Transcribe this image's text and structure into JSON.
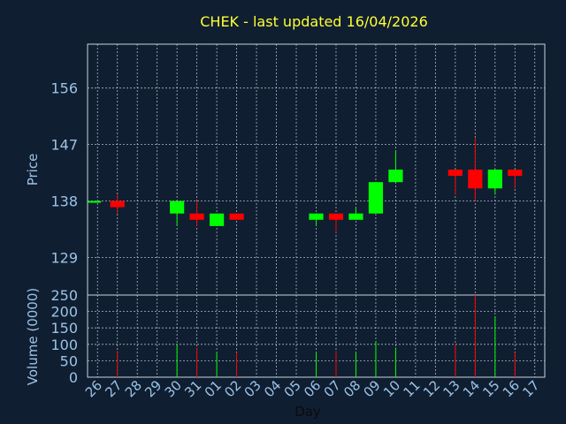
{
  "chart_data": {
    "type": "candlestick",
    "title": "CHEK - last updated 16/04/2026",
    "price_panel": {
      "ylabel": "Price",
      "ylim": [
        123,
        163
      ],
      "yticks": [
        129,
        138,
        147,
        156
      ]
    },
    "volume_panel": {
      "ylabel": "Volume (0000)",
      "ylim": [
        0,
        250
      ],
      "yticks": [
        0,
        50,
        100,
        150,
        200,
        250
      ]
    },
    "xlabel": "Day",
    "x_labels": [
      "26",
      "27",
      "28",
      "29",
      "30",
      "31",
      "01",
      "02",
      "03",
      "04",
      "05",
      "06",
      "07",
      "08",
      "09",
      "10",
      "11",
      "12",
      "13",
      "14",
      "15",
      "16",
      "17"
    ],
    "candles": [
      {
        "day": "26",
        "open": 138.0,
        "close": 138.0,
        "high": 138.0,
        "low": 138.0,
        "volume": 0,
        "direction": "flat"
      },
      {
        "day": "27",
        "open": 138.0,
        "close": 137.0,
        "high": 139.0,
        "low": 136.0,
        "volume": 80,
        "direction": "down"
      },
      {
        "day": "30",
        "open": 136.0,
        "close": 138.0,
        "high": 138.0,
        "low": 134.0,
        "volume": 100,
        "direction": "up"
      },
      {
        "day": "31",
        "open": 136.0,
        "close": 135.0,
        "high": 138.0,
        "low": 134.0,
        "volume": 90,
        "direction": "down"
      },
      {
        "day": "01",
        "open": 134.0,
        "close": 136.0,
        "high": 136.0,
        "low": 134.0,
        "volume": 75,
        "direction": "up"
      },
      {
        "day": "02",
        "open": 136.0,
        "close": 135.0,
        "high": 136.0,
        "low": 135.0,
        "volume": 75,
        "direction": "down"
      },
      {
        "day": "06",
        "open": 135.0,
        "close": 136.0,
        "high": 136.0,
        "low": 134.0,
        "volume": 75,
        "direction": "up"
      },
      {
        "day": "07",
        "open": 136.0,
        "close": 135.0,
        "high": 136.0,
        "low": 133.0,
        "volume": 80,
        "direction": "down"
      },
      {
        "day": "08",
        "open": 135.0,
        "close": 136.0,
        "high": 137.0,
        "low": 135.0,
        "volume": 75,
        "direction": "up"
      },
      {
        "day": "09",
        "open": 136.0,
        "close": 141.0,
        "high": 141.0,
        "low": 136.0,
        "volume": 110,
        "direction": "up"
      },
      {
        "day": "10",
        "open": 141.0,
        "close": 143.0,
        "high": 146.0,
        "low": 141.0,
        "volume": 90,
        "direction": "up"
      },
      {
        "day": "13",
        "open": 143.0,
        "close": 142.0,
        "high": 143.0,
        "low": 139.0,
        "volume": 100,
        "direction": "down"
      },
      {
        "day": "14",
        "open": 143.0,
        "close": 140.0,
        "high": 148.0,
        "low": 138.0,
        "volume": 250,
        "direction": "down"
      },
      {
        "day": "15",
        "open": 140.0,
        "close": 143.0,
        "high": 143.0,
        "low": 139.0,
        "volume": 185,
        "direction": "up"
      },
      {
        "day": "16",
        "open": 143.0,
        "close": 142.0,
        "high": 143.0,
        "low": 140.0,
        "volume": 75,
        "direction": "down"
      }
    ],
    "colors": {
      "background": "#0f1e31",
      "up": "#00ff00",
      "down": "#ff0000",
      "grid": "#c8d4e0",
      "title": "#ffff33",
      "axis_text": "#9cc3e6"
    },
    "grid": true
  }
}
